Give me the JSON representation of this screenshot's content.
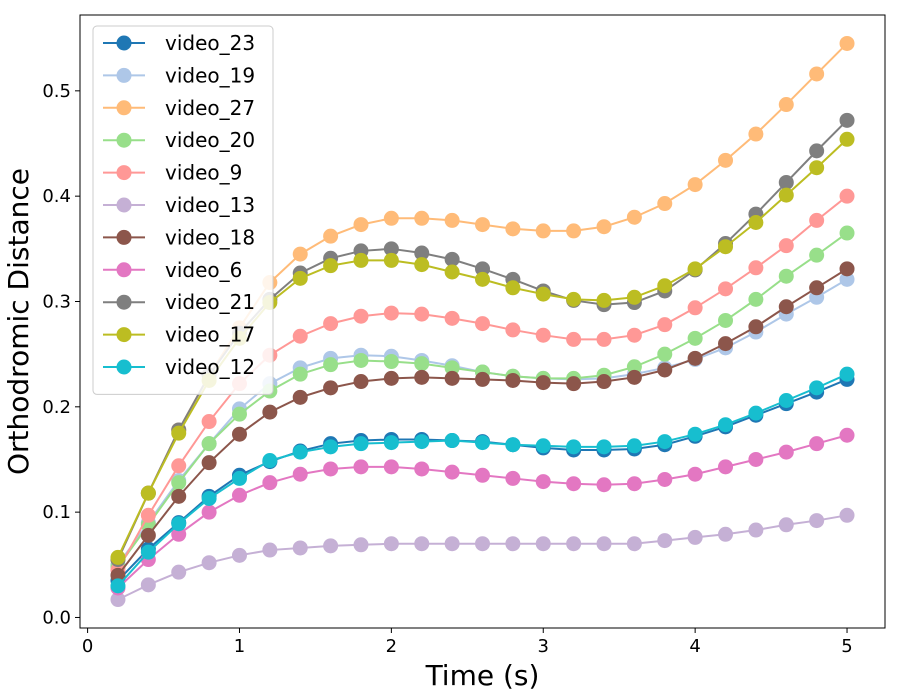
{
  "chart_data": {
    "type": "line",
    "xlabel": "Time (s)",
    "ylabel": "Orthodromic Distance",
    "xlim": [
      -0.05,
      5.25
    ],
    "ylim": [
      -0.01,
      0.572
    ],
    "xticks": [
      0,
      1,
      2,
      3,
      4,
      5
    ],
    "yticks": [
      0.0,
      0.1,
      0.2,
      0.3,
      0.4,
      0.5
    ],
    "grid": false,
    "legend_position": "top-left",
    "x": [
      0.2,
      0.4,
      0.6,
      0.8,
      1.0,
      1.2,
      1.4,
      1.6,
      1.8,
      2.0,
      2.2,
      2.4,
      2.6,
      2.8,
      3.0,
      3.2,
      3.4,
      3.6,
      3.8,
      4.0,
      4.2,
      4.4,
      4.6,
      4.8,
      5.0
    ],
    "series": [
      {
        "name": "video_23",
        "color": "#1f77b4",
        "values": [
          0.035,
          0.065,
          0.09,
          0.115,
          0.135,
          0.148,
          0.158,
          0.165,
          0.168,
          0.169,
          0.169,
          0.168,
          0.167,
          0.164,
          0.161,
          0.159,
          0.159,
          0.16,
          0.164,
          0.172,
          0.181,
          0.192,
          0.203,
          0.214,
          0.226
        ]
      },
      {
        "name": "video_19",
        "color": "#aec7e8",
        "values": [
          0.05,
          0.09,
          0.13,
          0.165,
          0.198,
          0.222,
          0.237,
          0.246,
          0.249,
          0.248,
          0.244,
          0.239,
          0.233,
          0.229,
          0.227,
          0.226,
          0.227,
          0.231,
          0.237,
          0.245,
          0.256,
          0.271,
          0.288,
          0.304,
          0.321
        ]
      },
      {
        "name": "video_27",
        "color": "#ffbb78",
        "values": [
          0.055,
          0.118,
          0.178,
          0.23,
          0.275,
          0.318,
          0.345,
          0.362,
          0.373,
          0.379,
          0.379,
          0.377,
          0.373,
          0.369,
          0.367,
          0.367,
          0.371,
          0.38,
          0.393,
          0.411,
          0.434,
          0.459,
          0.487,
          0.516,
          0.545
        ]
      },
      {
        "name": "video_20",
        "color": "#98df8a",
        "values": [
          0.048,
          0.088,
          0.128,
          0.165,
          0.193,
          0.215,
          0.231,
          0.24,
          0.244,
          0.243,
          0.241,
          0.237,
          0.233,
          0.229,
          0.227,
          0.227,
          0.23,
          0.238,
          0.25,
          0.265,
          0.282,
          0.302,
          0.324,
          0.344,
          0.365
        ]
      },
      {
        "name": "video_9",
        "color": "#ff9896",
        "values": [
          0.045,
          0.097,
          0.144,
          0.186,
          0.222,
          0.249,
          0.267,
          0.279,
          0.286,
          0.289,
          0.288,
          0.284,
          0.279,
          0.273,
          0.268,
          0.264,
          0.264,
          0.268,
          0.278,
          0.294,
          0.312,
          0.332,
          0.353,
          0.377,
          0.4
        ]
      },
      {
        "name": "video_13",
        "color": "#c5b0d5",
        "values": [
          0.017,
          0.031,
          0.043,
          0.052,
          0.059,
          0.064,
          0.066,
          0.068,
          0.069,
          0.07,
          0.07,
          0.07,
          0.07,
          0.07,
          0.07,
          0.07,
          0.07,
          0.07,
          0.073,
          0.076,
          0.079,
          0.083,
          0.088,
          0.092,
          0.097
        ]
      },
      {
        "name": "video_18",
        "color": "#8c564b",
        "values": [
          0.04,
          0.078,
          0.115,
          0.147,
          0.174,
          0.195,
          0.209,
          0.218,
          0.224,
          0.227,
          0.228,
          0.227,
          0.226,
          0.225,
          0.223,
          0.222,
          0.224,
          0.228,
          0.235,
          0.246,
          0.26,
          0.276,
          0.295,
          0.313,
          0.331
        ]
      },
      {
        "name": "video_6",
        "color": "#e377c2",
        "values": [
          0.028,
          0.055,
          0.079,
          0.1,
          0.116,
          0.128,
          0.136,
          0.141,
          0.143,
          0.143,
          0.141,
          0.138,
          0.135,
          0.132,
          0.129,
          0.127,
          0.126,
          0.127,
          0.131,
          0.136,
          0.143,
          0.15,
          0.157,
          0.165,
          0.173
        ]
      },
      {
        "name": "video_21",
        "color": "#7f7f7f",
        "values": [
          0.055,
          0.118,
          0.178,
          0.23,
          0.27,
          0.302,
          0.327,
          0.341,
          0.348,
          0.35,
          0.346,
          0.34,
          0.331,
          0.321,
          0.31,
          0.301,
          0.297,
          0.299,
          0.31,
          0.33,
          0.355,
          0.383,
          0.413,
          0.443,
          0.472
        ]
      },
      {
        "name": "video_17",
        "color": "#bcbd22",
        "values": [
          0.057,
          0.118,
          0.175,
          0.225,
          0.265,
          0.299,
          0.322,
          0.334,
          0.339,
          0.339,
          0.335,
          0.328,
          0.321,
          0.313,
          0.307,
          0.302,
          0.301,
          0.304,
          0.315,
          0.331,
          0.352,
          0.375,
          0.401,
          0.427,
          0.454
        ]
      },
      {
        "name": "video_12",
        "color": "#17becf",
        "values": [
          0.03,
          0.062,
          0.089,
          0.113,
          0.132,
          0.149,
          0.157,
          0.162,
          0.165,
          0.166,
          0.167,
          0.168,
          0.166,
          0.164,
          0.163,
          0.162,
          0.162,
          0.163,
          0.167,
          0.174,
          0.183,
          0.194,
          0.206,
          0.218,
          0.231
        ]
      }
    ]
  }
}
